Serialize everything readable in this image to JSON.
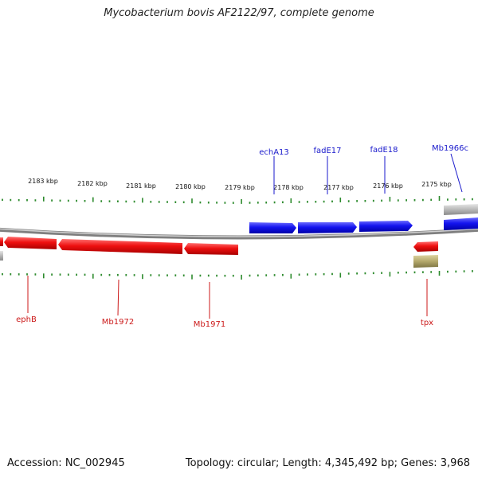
{
  "title": "Mycobacterium bovis AF2122/97, complete genome",
  "footer": {
    "accession": "Accession: NC_002945",
    "summary": "Topology: circular; Length: 4,345,492 bp; Genes: 3,968"
  },
  "colors": {
    "forward": "#1010e6",
    "reverse": "#e61010",
    "misc": "#b3a86b",
    "ticks": "#2e8b2e",
    "backbone": "#909090"
  },
  "kbp_labels": [
    "2183 kbp",
    "2182 kbp",
    "2181 kbp",
    "2180 kbp",
    "2179 kbp",
    "2178 kbp",
    "2177 kbp",
    "2176 kbp",
    "2175 kbp"
  ],
  "forward_labels": [
    "echA13",
    "fadE17",
    "fadE18",
    "Mb1966c"
  ],
  "reverse_labels": [
    "ephB",
    "Mb1972",
    "Mb1971",
    "tpx"
  ]
}
